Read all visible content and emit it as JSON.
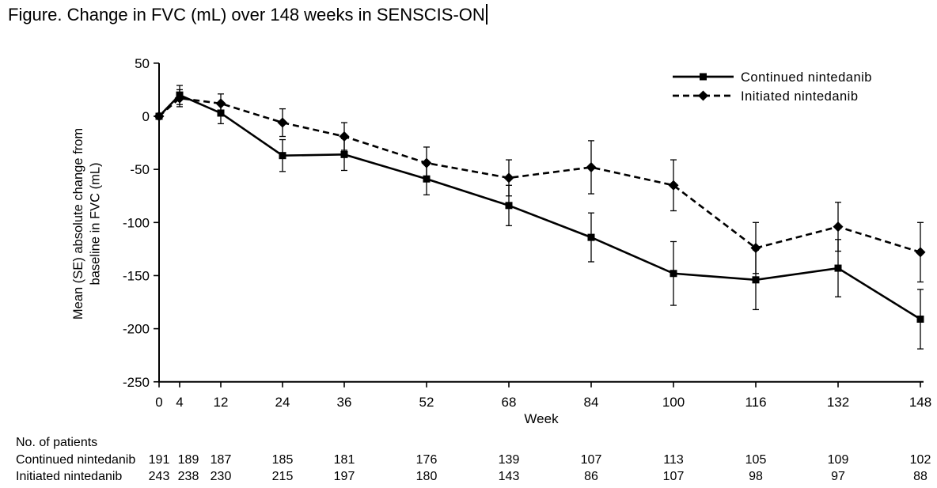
{
  "title": {
    "text": "Figure. Change in FVC (mL) over 148 weeks in SENSCIS-ON"
  },
  "chart_data": {
    "type": "line",
    "title": "Change in FVC (mL) over 148 weeks in SENSCIS-ON",
    "xlabel": "Week",
    "ylabel": "Mean (SE) absolute change from baseline in FVC (mL)",
    "ylabel_lines": [
      "Mean (SE) absolute change from",
      "baseline in FVC (mL)"
    ],
    "x": [
      0,
      4,
      12,
      24,
      36,
      52,
      68,
      84,
      100,
      116,
      132,
      148
    ],
    "xlim": [
      0,
      148
    ],
    "ylim": [
      -250,
      50
    ],
    "yticks": [
      50,
      0,
      -50,
      -100,
      -150,
      -200,
      -250
    ],
    "grid": false,
    "legend_position": "top-right",
    "error_bars": "SE",
    "series": [
      {
        "name": "Continued nintedanib",
        "marker": "square",
        "line": "solid",
        "values": [
          0,
          20,
          3,
          -37,
          -36,
          -59,
          -84,
          -114,
          -148,
          -154,
          -143,
          -191
        ],
        "se": [
          0,
          9,
          10,
          15,
          15,
          15,
          19,
          23,
          30,
          28,
          27,
          28
        ]
      },
      {
        "name": "Initiated nintedanib",
        "marker": "diamond",
        "line": "dashed",
        "values": [
          0,
          17,
          12,
          -6,
          -19,
          -44,
          -58,
          -48,
          -65,
          -124,
          -104,
          -128
        ],
        "se": [
          0,
          8,
          9,
          13,
          13,
          15,
          17,
          25,
          24,
          24,
          23,
          28
        ]
      }
    ]
  },
  "patients_table": {
    "heading": "No. of patients",
    "rows": [
      {
        "label": "Continued nintedanib",
        "counts": [
          191,
          189,
          187,
          185,
          181,
          176,
          139,
          107,
          113,
          105,
          109,
          102
        ]
      },
      {
        "label": "Initiated nintedanib",
        "counts": [
          243,
          238,
          230,
          215,
          197,
          180,
          143,
          86,
          107,
          98,
          97,
          88
        ]
      }
    ]
  },
  "colors": {
    "line": "#000000",
    "text": "#000000",
    "background": "#ffffff"
  }
}
